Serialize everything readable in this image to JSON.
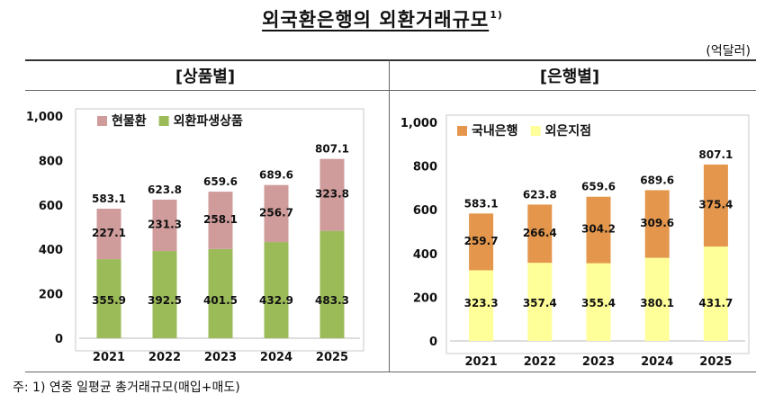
{
  "header": {
    "title": "외국환은행의 외환거래규모",
    "title_sup": "1)",
    "unit": "(억달러)"
  },
  "footnote": "주: 1) 연중 일평균 총거래규모(매입+매도)",
  "chart_data": [
    {
      "type": "bar",
      "stacked": true,
      "title": "[상품별]",
      "categories": [
        "2021",
        "2022",
        "2023",
        "2024",
        "2025"
      ],
      "series": [
        {
          "name": "외환파생상품",
          "values": [
            355.9,
            392.5,
            401.5,
            432.9,
            483.3
          ],
          "color": "#9bbb59"
        },
        {
          "name": "현물환",
          "values": [
            227.1,
            231.3,
            258.1,
            256.7,
            323.8
          ],
          "color": "#d09b9b"
        }
      ],
      "totals": [
        583.1,
        623.8,
        659.6,
        689.6,
        807.1
      ],
      "ylim": [
        0,
        1000
      ],
      "yticks": [
        0,
        200,
        400,
        600,
        800,
        1000
      ],
      "ytick_labels": [
        "0",
        "200",
        "400",
        "600",
        "800",
        "1,000"
      ],
      "legend_order": [
        "현물환",
        "외환파생상품"
      ],
      "legend": "top-left",
      "grid": false
    },
    {
      "type": "bar",
      "stacked": true,
      "title": "[은행별]",
      "categories": [
        "2021",
        "2022",
        "2023",
        "2024",
        "2025"
      ],
      "series": [
        {
          "name": "외은지점",
          "values": [
            323.3,
            357.4,
            355.4,
            380.1,
            431.7
          ],
          "color": "#ffff99"
        },
        {
          "name": "국내은행",
          "values": [
            259.7,
            266.4,
            304.2,
            309.6,
            375.4
          ],
          "color": "#e4974c"
        }
      ],
      "totals": [
        583.1,
        623.8,
        659.6,
        689.6,
        807.1
      ],
      "ylim": [
        0,
        1000
      ],
      "yticks": [
        0,
        200,
        400,
        600,
        800,
        1000
      ],
      "ytick_labels": [
        "0",
        "200",
        "400",
        "600",
        "800",
        "1,000"
      ],
      "legend_order": [
        "국내은행",
        "외은지점"
      ],
      "legend": "top-left",
      "grid": false
    }
  ]
}
